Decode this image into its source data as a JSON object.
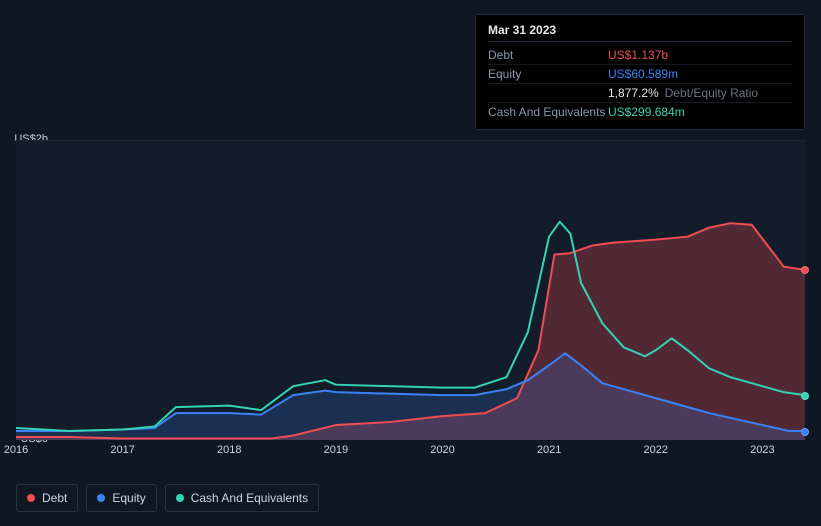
{
  "tooltip": {
    "title": "Mar 31 2023",
    "rows": [
      {
        "label": "Debt",
        "value": "US$1.137b",
        "color": "#ef4d52"
      },
      {
        "label": "Equity",
        "value": "US$60.589m",
        "color": "#3b82f6"
      },
      {
        "label": "",
        "value": "1,877.2%",
        "suffix": "Debt/Equity Ratio",
        "color": "#e5e7eb"
      },
      {
        "label": "Cash And Equivalents",
        "value": "US$299.684m",
        "color": "#34d3b3"
      }
    ]
  },
  "chart": {
    "type": "area",
    "background_color": "#131c29",
    "page_background": "#0f1722",
    "grid_color": "#1a2433",
    "y": {
      "min": 0,
      "max": 2.0,
      "labels": [
        {
          "v": 0,
          "text": "US$0"
        },
        {
          "v": 2.0,
          "text": "US$2b"
        }
      ]
    },
    "x": {
      "min": 2016,
      "max": 2023.4,
      "ticks": [
        2016,
        2017,
        2018,
        2019,
        2020,
        2021,
        2022,
        2023
      ]
    },
    "series": [
      {
        "name": "Debt",
        "color": "#ef4d52",
        "fill_opacity": 0.28,
        "points": [
          [
            2016,
            0.02
          ],
          [
            2016.5,
            0.02
          ],
          [
            2017,
            0.01
          ],
          [
            2017.5,
            0.01
          ],
          [
            2018,
            0.01
          ],
          [
            2018.4,
            0.01
          ],
          [
            2018.6,
            0.03
          ],
          [
            2019,
            0.1
          ],
          [
            2019.5,
            0.12
          ],
          [
            2020,
            0.16
          ],
          [
            2020.4,
            0.18
          ],
          [
            2020.7,
            0.28
          ],
          [
            2020.9,
            0.6
          ],
          [
            2021.05,
            1.24
          ],
          [
            2021.2,
            1.25
          ],
          [
            2021.4,
            1.3
          ],
          [
            2021.6,
            1.32
          ],
          [
            2022,
            1.34
          ],
          [
            2022.3,
            1.36
          ],
          [
            2022.5,
            1.42
          ],
          [
            2022.7,
            1.45
          ],
          [
            2022.9,
            1.44
          ],
          [
            2023.05,
            1.3
          ],
          [
            2023.2,
            1.16
          ],
          [
            2023.4,
            1.137
          ]
        ]
      },
      {
        "name": "Equity",
        "color": "#3b82f6",
        "fill_opacity": 0.2,
        "points": [
          [
            2016,
            0.06
          ],
          [
            2016.5,
            0.06
          ],
          [
            2017,
            0.07
          ],
          [
            2017.3,
            0.08
          ],
          [
            2017.5,
            0.18
          ],
          [
            2018,
            0.18
          ],
          [
            2018.3,
            0.17
          ],
          [
            2018.6,
            0.3
          ],
          [
            2018.9,
            0.33
          ],
          [
            2019,
            0.32
          ],
          [
            2019.5,
            0.31
          ],
          [
            2020,
            0.3
          ],
          [
            2020.3,
            0.3
          ],
          [
            2020.6,
            0.34
          ],
          [
            2020.8,
            0.4
          ],
          [
            2021.0,
            0.5
          ],
          [
            2021.15,
            0.58
          ],
          [
            2021.3,
            0.5
          ],
          [
            2021.5,
            0.38
          ],
          [
            2022,
            0.28
          ],
          [
            2022.3,
            0.22
          ],
          [
            2022.5,
            0.18
          ],
          [
            2023,
            0.1
          ],
          [
            2023.25,
            0.06
          ],
          [
            2023.4,
            0.061
          ]
        ]
      },
      {
        "name": "Cash And Equivalents",
        "color": "#34d3b3",
        "fill_opacity": 0.0,
        "points": [
          [
            2016,
            0.08
          ],
          [
            2016.5,
            0.06
          ],
          [
            2017,
            0.07
          ],
          [
            2017.3,
            0.09
          ],
          [
            2017.5,
            0.22
          ],
          [
            2018,
            0.23
          ],
          [
            2018.3,
            0.2
          ],
          [
            2018.6,
            0.36
          ],
          [
            2018.9,
            0.4
          ],
          [
            2019,
            0.37
          ],
          [
            2019.5,
            0.36
          ],
          [
            2020,
            0.35
          ],
          [
            2020.3,
            0.35
          ],
          [
            2020.6,
            0.42
          ],
          [
            2020.8,
            0.72
          ],
          [
            2021.0,
            1.36
          ],
          [
            2021.1,
            1.46
          ],
          [
            2021.2,
            1.38
          ],
          [
            2021.3,
            1.05
          ],
          [
            2021.5,
            0.78
          ],
          [
            2021.7,
            0.62
          ],
          [
            2021.9,
            0.56
          ],
          [
            2022.0,
            0.6
          ],
          [
            2022.15,
            0.68
          ],
          [
            2022.3,
            0.6
          ],
          [
            2022.5,
            0.48
          ],
          [
            2022.7,
            0.42
          ],
          [
            2023,
            0.36
          ],
          [
            2023.2,
            0.32
          ],
          [
            2023.4,
            0.3
          ]
        ]
      }
    ],
    "end_markers": [
      {
        "series": 0,
        "color": "#ef4d52"
      },
      {
        "series": 1,
        "color": "#3b82f6"
      },
      {
        "series": 2,
        "color": "#34d3b3"
      }
    ]
  },
  "legend": [
    {
      "label": "Debt",
      "color": "#ef4d52"
    },
    {
      "label": "Equity",
      "color": "#3b82f6"
    },
    {
      "label": "Cash And Equivalents",
      "color": "#34d3b3"
    }
  ]
}
